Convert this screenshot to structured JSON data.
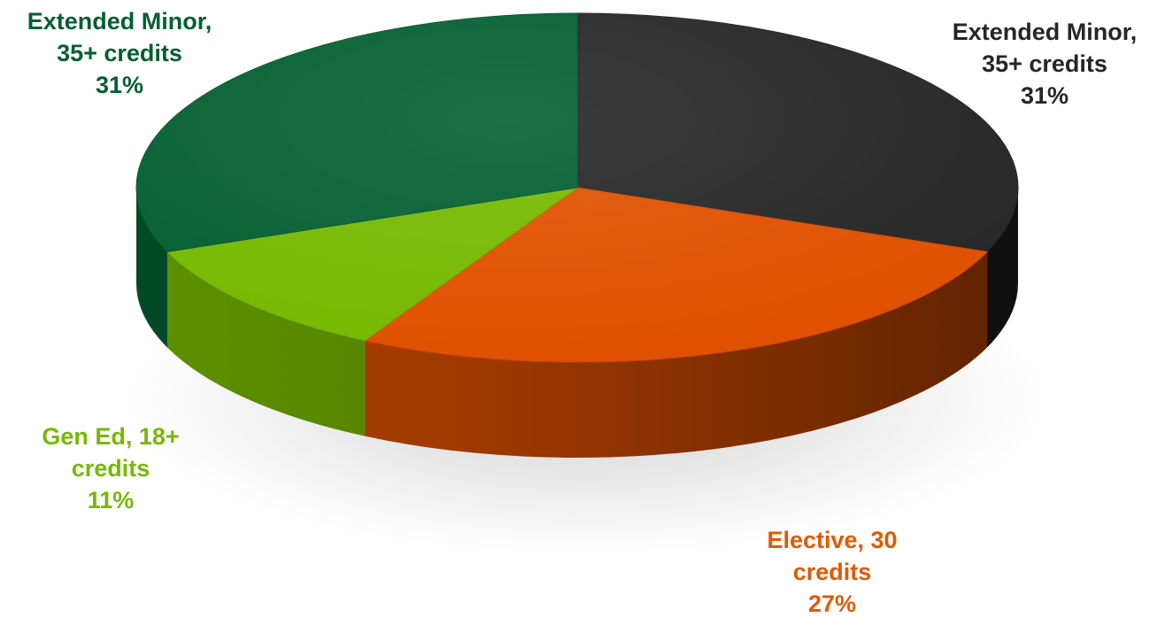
{
  "chart_data": {
    "type": "pie",
    "style": "3d",
    "title": "",
    "slices": [
      {
        "label_line1": "Extended Minor,",
        "label_line2": "35+ credits",
        "percent_label": "31%",
        "value": 31,
        "color": "#262626",
        "label_color": "#262626"
      },
      {
        "label_line1": "Elective, 30",
        "label_line2": "credits",
        "percent_label": "27%",
        "value": 27,
        "color": "#e05000",
        "label_color": "#e05a00"
      },
      {
        "label_line1": "Gen Ed, 18+",
        "label_line2": "credits",
        "percent_label": "11%",
        "value": 11,
        "color": "#76b900",
        "label_color": "#76b900"
      },
      {
        "label_line1": "Extended Minor,",
        "label_line2": "35+ credits",
        "percent_label": "31%",
        "value": 31,
        "color": "#025f30",
        "label_color": "#025f30"
      }
    ]
  }
}
